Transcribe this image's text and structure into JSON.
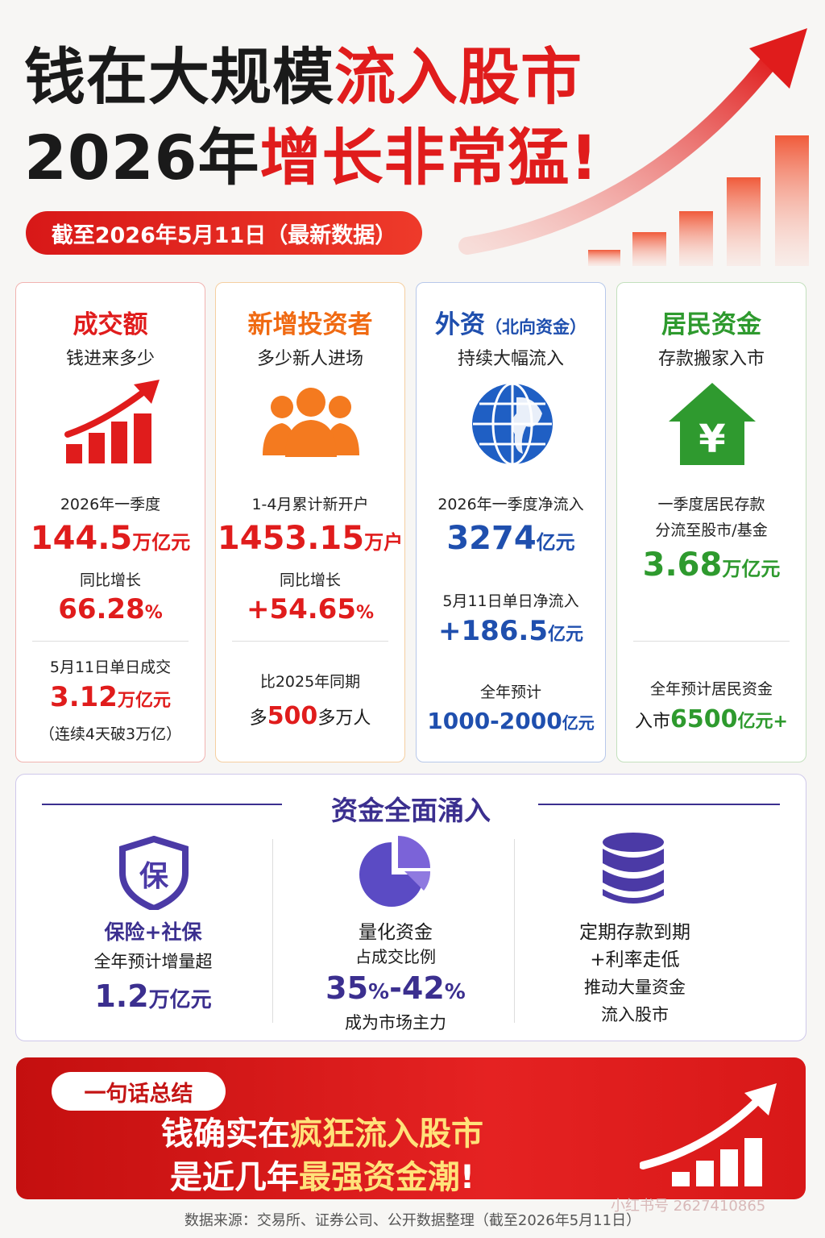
{
  "header": {
    "title_line1_black": "钱在大规模",
    "title_line1_red": "流入股市",
    "title_line2_black": "2026年",
    "title_line2_red": "增长非常猛!",
    "date_pill": "截至2026年5月11日（最新数据）"
  },
  "cards": [
    {
      "title": "成交额",
      "subtitle": "钱进来多少",
      "icon": "bar-chart-arrow-icon",
      "label1": "2026年一季度",
      "value1": "144.5",
      "unit1": "万亿元",
      "label2": "同比增长",
      "value2": "66.28",
      "unit2": "%",
      "label3": "5月11日单日成交",
      "value3": "3.12",
      "unit3": "万亿元",
      "note3": "（连续4天破3万亿）"
    },
    {
      "title": "新增投资者",
      "subtitle": "多少新人进场",
      "icon": "people-group-icon",
      "label1": "1-4月累计新开户",
      "value1": "1453.15",
      "unit1": "万户",
      "label2": "同比增长",
      "value2": "+54.65",
      "unit2": "%",
      "label3": "比2025年同期",
      "value3_prefix": "多",
      "value3": "500",
      "value3_suffix": "多万人"
    },
    {
      "title": "外资",
      "title_sub": "（北向资金）",
      "subtitle": "持续大幅流入",
      "icon": "globe-icon",
      "label1": "2026年一季度净流入",
      "value1": "3274",
      "unit1": "亿元",
      "label2": "5月11日单日净流入",
      "value2": "+186.5",
      "unit2": "亿元",
      "label3": "全年预计",
      "value3": "1000-2000",
      "unit3": "亿元"
    },
    {
      "title": "居民资金",
      "subtitle": "存款搬家入市",
      "icon": "house-yen-icon",
      "label1_line1": "一季度居民存款",
      "label1_line2": "分流至股市/基金",
      "value1": "3.68",
      "unit1": "万亿元",
      "label3": "全年预计居民资金",
      "value3_prefix": "入市",
      "value3": "6500",
      "unit3": "亿元+"
    }
  ],
  "panel": {
    "title": "资金全面涌入",
    "col1": {
      "icon": "shield-bao-icon",
      "glyph": "保",
      "title": "保险+社保",
      "label": "全年预计增量超",
      "value": "1.2",
      "unit": "万亿元"
    },
    "col2": {
      "icon": "pie-chart-icon",
      "title": "量化资金",
      "label": "占成交比例",
      "value_a": "35",
      "value_b": "42",
      "unit": "%",
      "dash": "-",
      "note": "成为市场主力"
    },
    "col3": {
      "icon": "database-icon",
      "lines": [
        "定期存款到期",
        "+利率走低",
        "推动大量资金",
        "流入股市"
      ]
    }
  },
  "banner": {
    "pill": "一句话总结",
    "line1_white": "钱确实在",
    "line1_yellow": "疯狂流入股市",
    "line2_white_a": "是近几年",
    "line2_yellow": "最强资金潮",
    "line2_white_b": "!"
  },
  "footer": {
    "source": "数据来源：交易所、证券公司、公开数据整理（截至2026年5月11日）",
    "watermark": "小红书号 2627410865"
  },
  "colors": {
    "red": "#e01c1c",
    "orange": "#f06a12",
    "blue": "#1f4fae",
    "green": "#2e9a2e",
    "purple": "#3b2f8f"
  }
}
